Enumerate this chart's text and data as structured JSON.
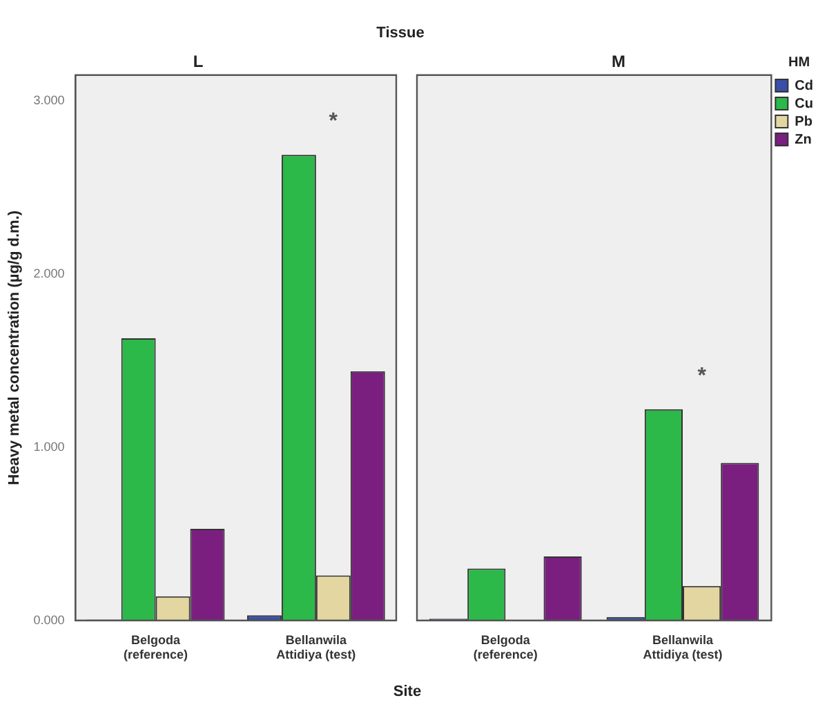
{
  "chart_data": [
    {
      "type": "bar",
      "title": "L",
      "xlabel": "Site",
      "ylabel": "Heavy metal concentration (µg/g d.m.)",
      "categories": [
        "Belgoda (reference)",
        "Bellanwila Attidiya (test)"
      ],
      "series": [
        {
          "color": "#3a4fa8",
          "values": [
            0.005,
            0.03
          ]
        },
        {
          "color": "#2db84a",
          "values": [
            1.63,
            2.69
          ]
        },
        {
          "color": "#e3d6a0",
          "values": [
            0.14,
            0.26
          ]
        },
        {
          "color": "#7a1f7f",
          "values": [
            0.53,
            1.44
          ]
        }
      ],
      "ylim": [
        0,
        3.15
      ],
      "yticks": [
        {
          "value": 0,
          "label": "0.000"
        },
        {
          "value": 1,
          "label": "1.000"
        },
        {
          "value": 2,
          "label": "2.000"
        },
        {
          "value": 3,
          "label": "3.000"
        }
      ],
      "subtitle": "Tissue",
      "annotations": [
        "*"
      ],
      "grid": false,
      "legend": false
    },
    {
      "type": "bar",
      "title": "M",
      "categories": [
        "Belgoda (reference)",
        "Bellanwila Attidiya (test)"
      ],
      "series": [
        {
          "name": "Cd",
          "color": "#3a4fa8",
          "values": [
            0.01,
            0.02
          ]
        },
        {
          "name": "Cu",
          "color": "#2db84a",
          "values": [
            0.3,
            1.22
          ]
        },
        {
          "name": "Pb",
          "color": "#e3d6a0",
          "values": [
            0,
            0.2
          ]
        },
        {
          "name": "Zn",
          "color": "#7a1f7f",
          "values": [
            0.37,
            0.91
          ]
        }
      ],
      "ylim": [
        0,
        3.15
      ],
      "tick_labels": "x",
      "legend_title": "HM",
      "legend": "top right",
      "annotations": [
        "*"
      ],
      "grid": false
    }
  ]
}
